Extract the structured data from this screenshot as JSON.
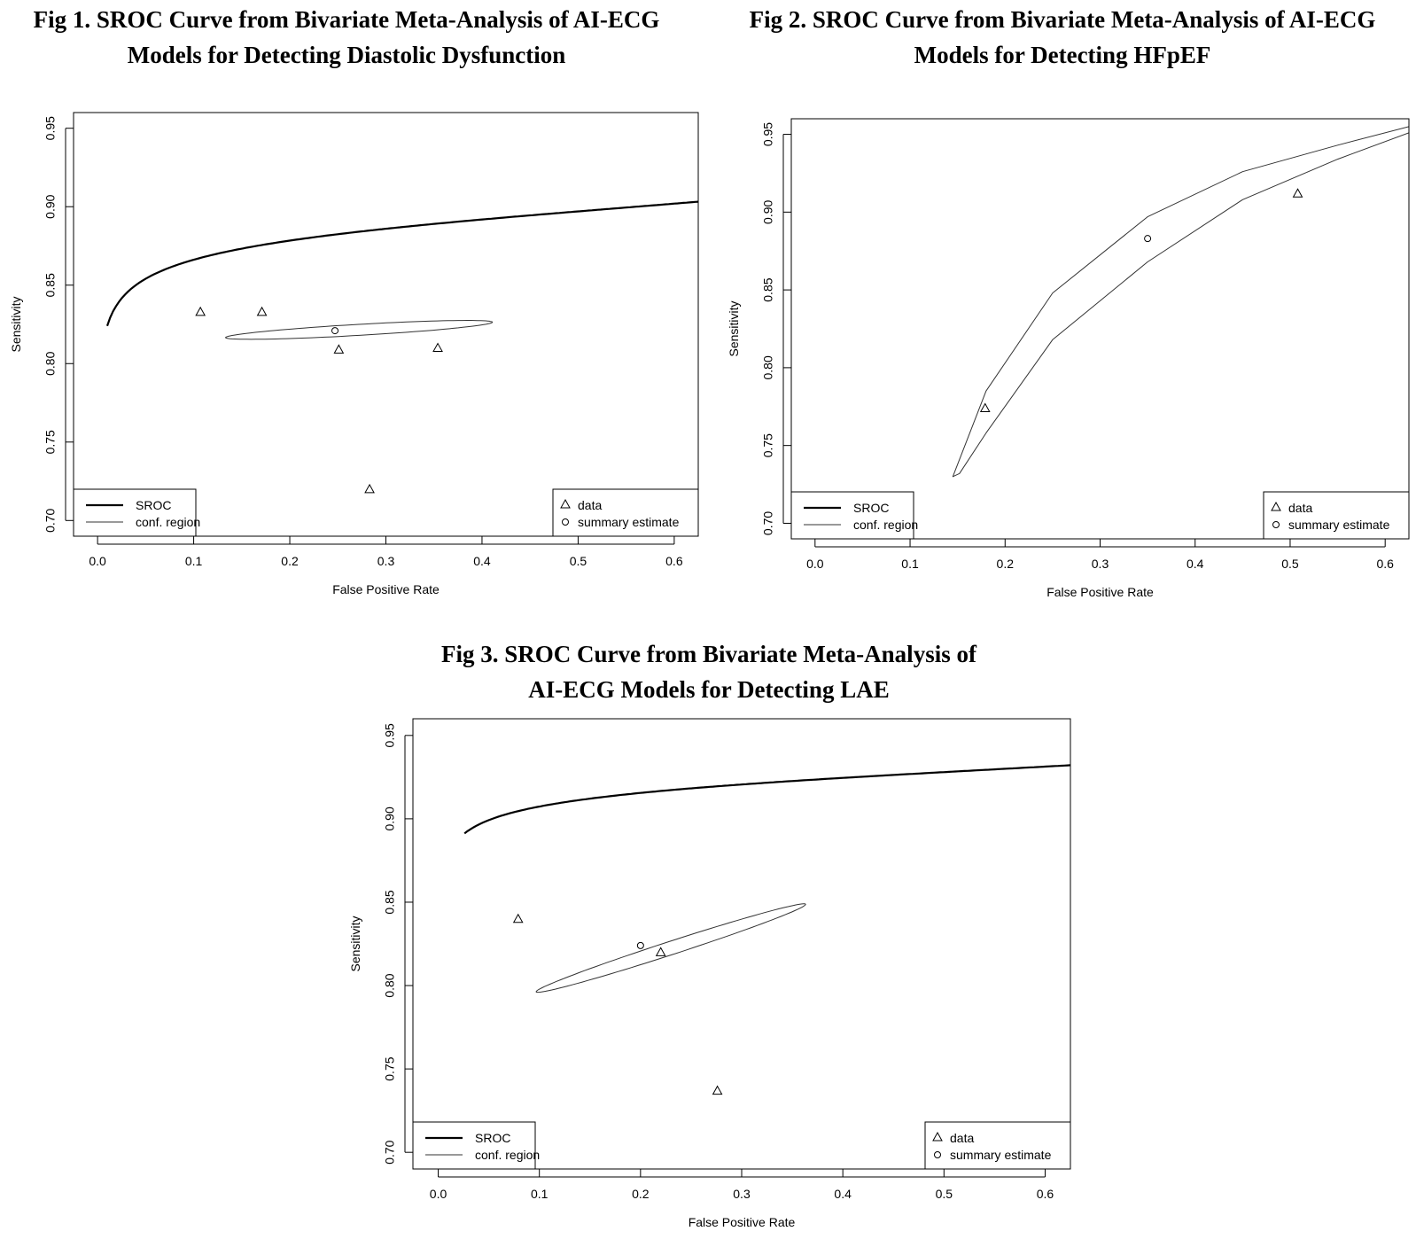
{
  "chart_data": [
    {
      "type": "scatter",
      "title_lines": [
        "Fig 1. SROC Curve from Bivariate Meta-Analysis of AI-ECG",
        "Models for Detecting Diastolic Dysfunction"
      ],
      "xlabel": "False Positive Rate",
      "ylabel": "Sensitivity",
      "xlim": [
        -0.025,
        0.625
      ],
      "ylim": [
        0.69,
        0.96
      ],
      "xticks": [
        0.0,
        0.1,
        0.2,
        0.3,
        0.4,
        0.5,
        0.6
      ],
      "xtick_labels": [
        "0.0",
        "0.1",
        "0.2",
        "0.3",
        "0.4",
        "0.5",
        "0.6"
      ],
      "yticks": [
        0.7,
        0.75,
        0.8,
        0.85,
        0.9,
        0.95
      ],
      "ytick_labels": [
        "0.70",
        "0.75",
        "0.80",
        "0.85",
        "0.90",
        "0.95"
      ],
      "grid": false,
      "sroc": {
        "a": 0.897,
        "b": 0.135,
        "x_start": 0.01
      },
      "data_points": [
        {
          "x": 0.107,
          "y": 0.833
        },
        {
          "x": 0.171,
          "y": 0.833
        },
        {
          "x": 0.251,
          "y": 0.809
        },
        {
          "x": 0.354,
          "y": 0.81
        },
        {
          "x": 0.283,
          "y": 0.72
        }
      ],
      "summary": {
        "x": 0.247,
        "y": 0.821
      },
      "conf_region": {
        "cx": 0.272,
        "cy": 0.8215,
        "rx": 0.139,
        "ry": 0.0035,
        "angle_deg": -3.3
      },
      "legend_left": [
        "SROC",
        "conf. region"
      ],
      "legend_right": [
        "data",
        "summary estimate"
      ],
      "legend_position": "bottom-left / bottom-right"
    },
    {
      "type": "scatter",
      "title_lines": [
        "Fig 2. SROC Curve from Bivariate Meta-Analysis of AI-ECG",
        "Models for Detecting HFpEF"
      ],
      "xlabel": "False Positive Rate",
      "ylabel": "Sensitivity",
      "xlim": [
        -0.025,
        0.625
      ],
      "ylim": [
        0.69,
        0.96
      ],
      "xticks": [
        0.0,
        0.1,
        0.2,
        0.3,
        0.4,
        0.5,
        0.6
      ],
      "xtick_labels": [
        "0.0",
        "0.1",
        "0.2",
        "0.3",
        "0.4",
        "0.5",
        "0.6"
      ],
      "yticks": [
        0.7,
        0.75,
        0.8,
        0.85,
        0.9,
        0.95
      ],
      "ytick_labels": [
        "0.70",
        "0.75",
        "0.80",
        "0.85",
        "0.90",
        "0.95"
      ],
      "grid": false,
      "sroc": {
        "a": 1.005,
        "b": 0.36,
        "x_start": 0.117
      },
      "data_points": [
        {
          "x": 0.179,
          "y": 0.774
        },
        {
          "x": 0.508,
          "y": 0.912
        }
      ],
      "summary": {
        "x": 0.35,
        "y": 0.883
      },
      "conf_band": {
        "upper": [
          [
            0.145,
            0.73
          ],
          [
            0.18,
            0.785
          ],
          [
            0.25,
            0.848
          ],
          [
            0.35,
            0.897
          ],
          [
            0.45,
            0.926
          ],
          [
            0.55,
            0.943
          ],
          [
            0.625,
            0.955
          ]
        ],
        "lower": [
          [
            0.145,
            0.73
          ],
          [
            0.152,
            0.732
          ],
          [
            0.18,
            0.758
          ],
          [
            0.25,
            0.818
          ],
          [
            0.35,
            0.868
          ],
          [
            0.45,
            0.908
          ],
          [
            0.55,
            0.934
          ],
          [
            0.625,
            0.951
          ]
        ]
      },
      "legend_left": [
        "SROC",
        "conf. region"
      ],
      "legend_right": [
        "data",
        "summary estimate"
      ],
      "legend_position": "bottom-left / bottom-right"
    },
    {
      "type": "scatter",
      "title_lines": [
        "Fig 3. SROC Curve from Bivariate Meta-Analysis of",
        "AI-ECG Models for Detecting LAE"
      ],
      "xlabel": "False Positive Rate",
      "ylabel": "Sensitivity",
      "xlim": [
        -0.025,
        0.625
      ],
      "ylim": [
        0.69,
        0.96
      ],
      "xticks": [
        0.0,
        0.1,
        0.2,
        0.3,
        0.4,
        0.5,
        0.6
      ],
      "xtick_labels": [
        "0.0",
        "0.1",
        "0.2",
        "0.3",
        "0.4",
        "0.5",
        "0.6"
      ],
      "yticks": [
        0.7,
        0.75,
        0.8,
        0.85,
        0.9,
        0.95
      ],
      "ytick_labels": [
        "0.70",
        "0.75",
        "0.80",
        "0.85",
        "0.90",
        "0.95"
      ],
      "grid": false,
      "sroc": {
        "a": 0.928,
        "b": 0.125,
        "x_start": 0.026
      },
      "data_points": [
        {
          "x": 0.079,
          "y": 0.84
        },
        {
          "x": 0.22,
          "y": 0.82
        },
        {
          "x": 0.276,
          "y": 0.737
        }
      ],
      "summary": {
        "x": 0.2,
        "y": 0.824
      },
      "conf_region": {
        "cx": 0.23,
        "cy": 0.8225,
        "rx": 0.14,
        "ry": 0.004,
        "angle_deg": -18
      },
      "legend_left": [
        "SROC",
        "conf. region"
      ],
      "legend_right": [
        "data",
        "summary estimate"
      ],
      "legend_position": "bottom-left / bottom-right"
    }
  ]
}
